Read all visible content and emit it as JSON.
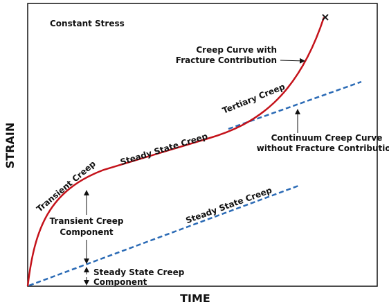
{
  "title": "Constant Stress",
  "axes": {
    "x_label": "TIME",
    "y_label": "STRAIN"
  },
  "annotations": {
    "fracture_curve": [
      "Creep Curve with",
      "Fracture Contribution"
    ],
    "tertiary": "Tertiary Creep",
    "steady_state": "Steady State Creep",
    "transient": "Transient Creep",
    "continuum_curve": [
      "Continuum Creep Curve",
      "without Fracture Contribution"
    ],
    "transient_component": [
      "Transient Creep",
      "Component"
    ],
    "steady_line": "Steady State Creep",
    "steady_component": [
      "Steady State Creep",
      "Component"
    ]
  }
}
